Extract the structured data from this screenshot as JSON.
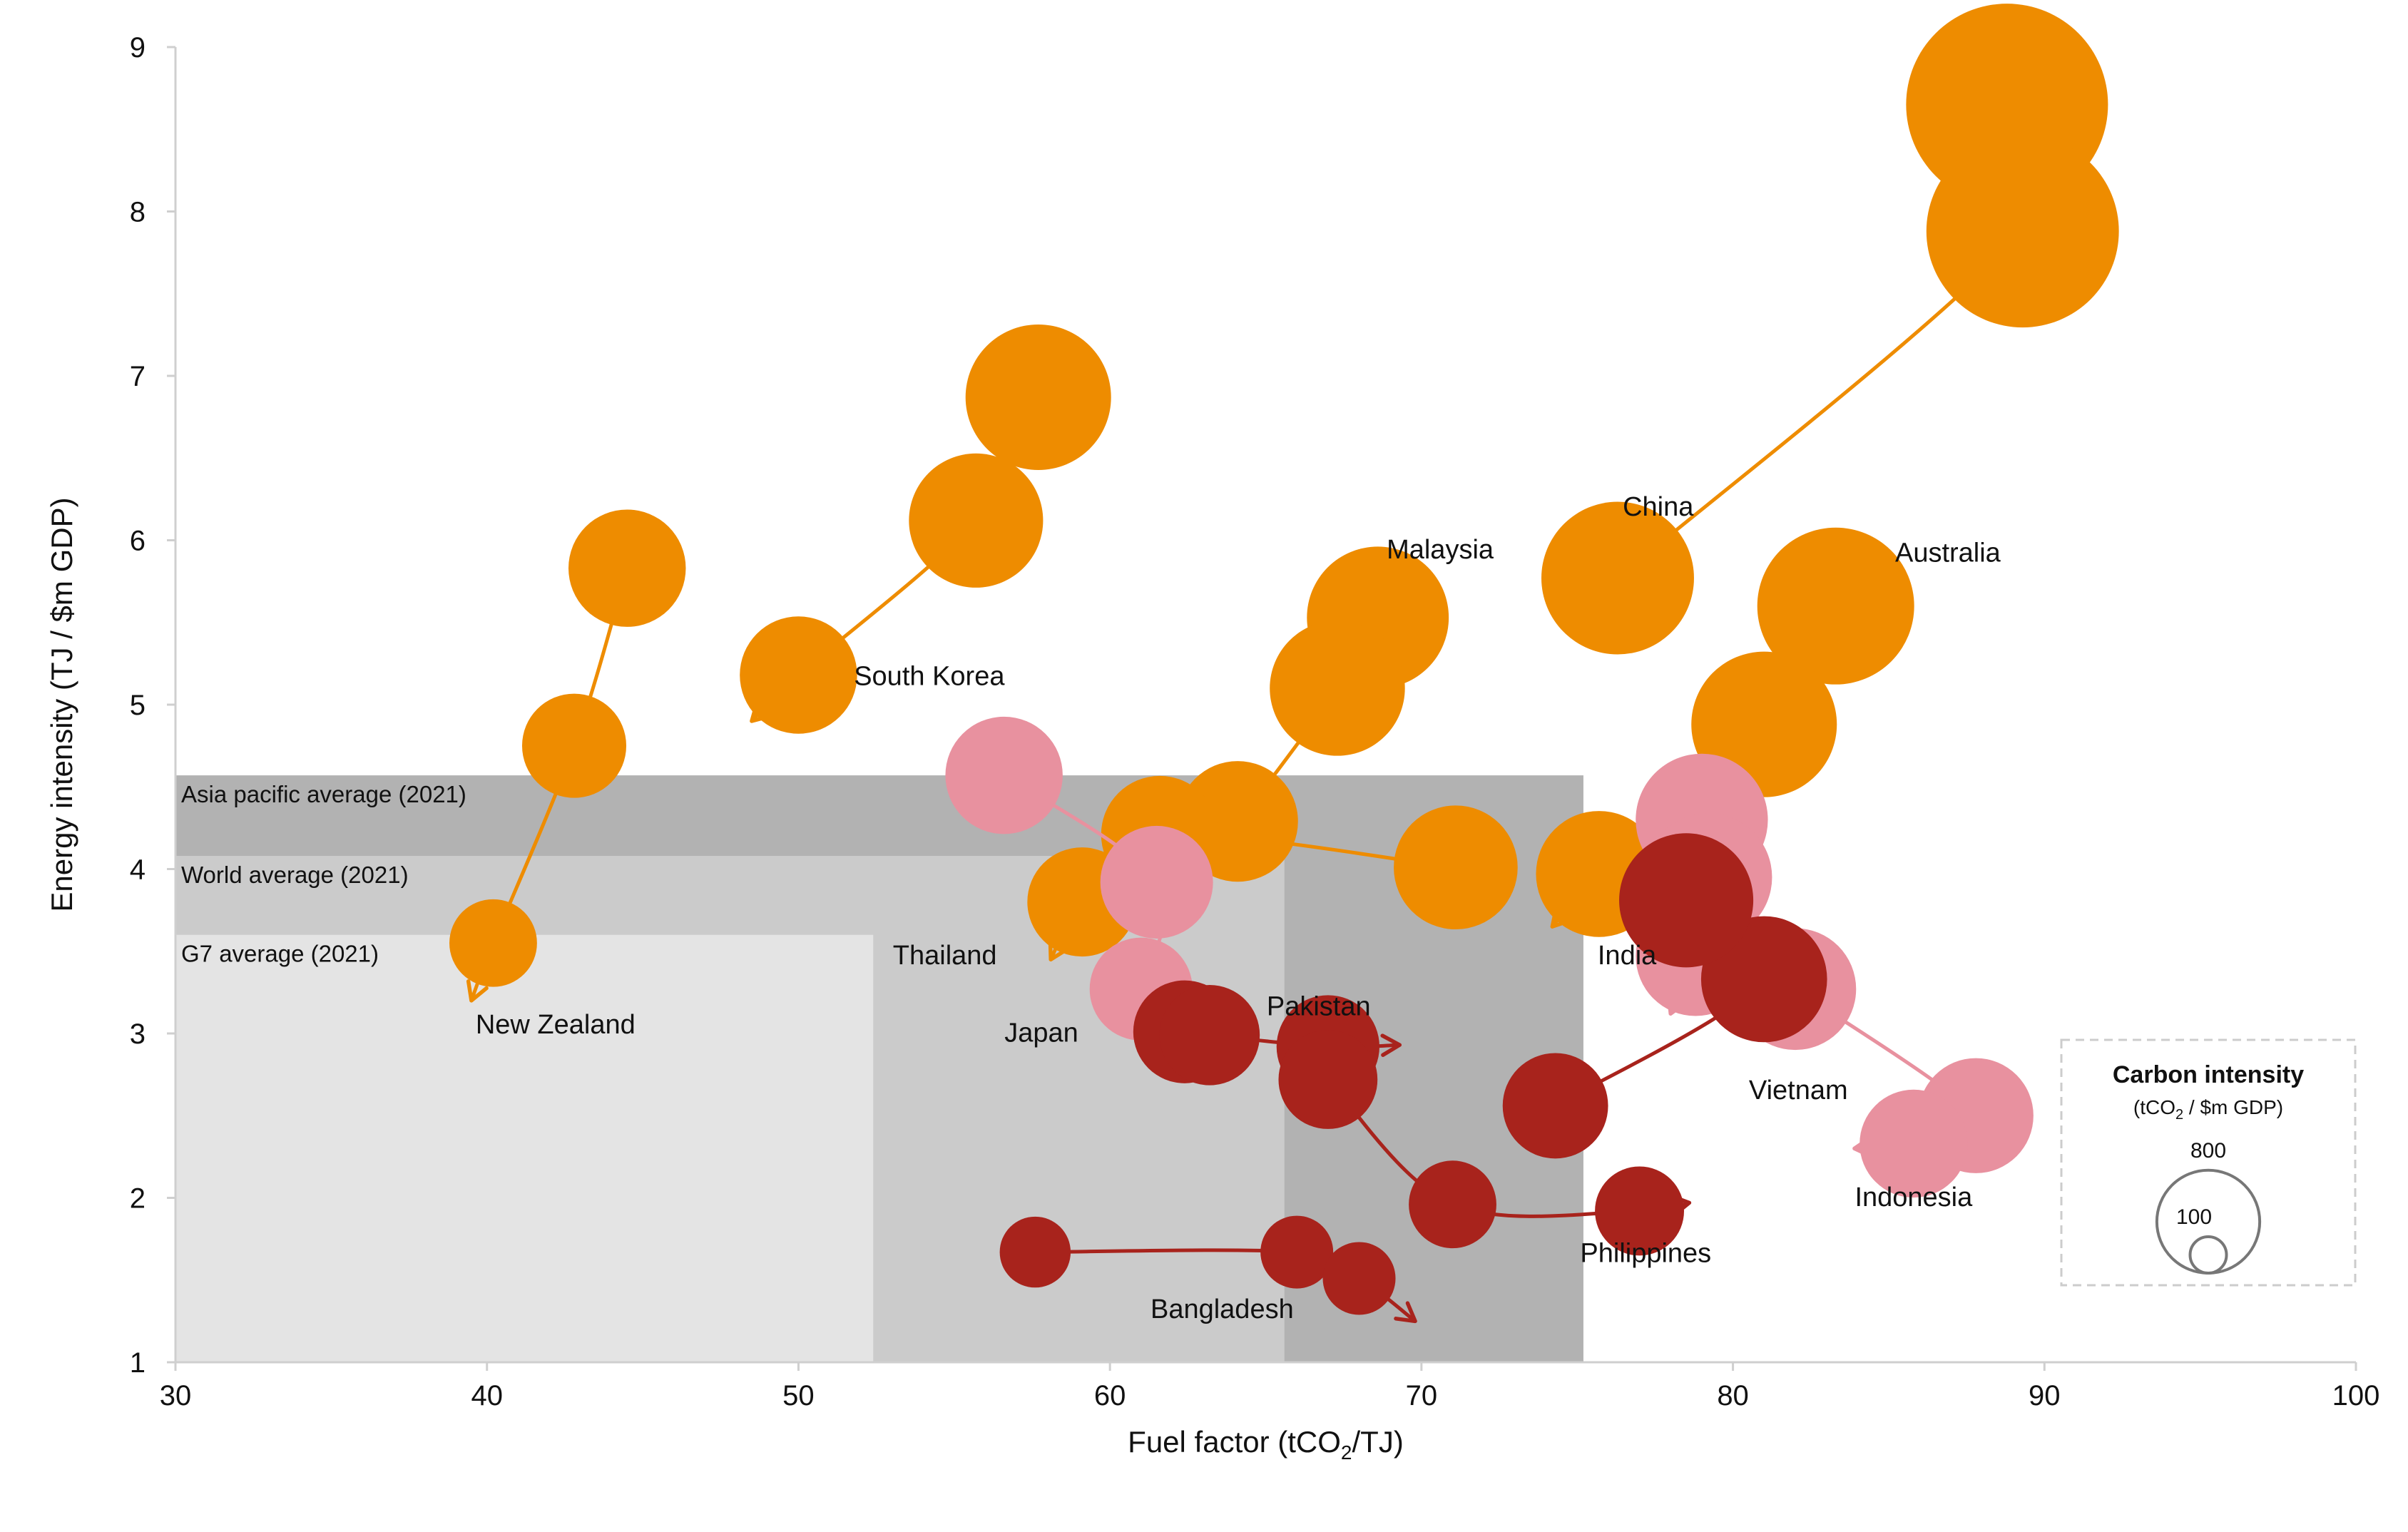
{
  "chart_data": {
    "type": "scatter",
    "xlabel": "Fuel factor (tCO2/TJ)",
    "xlabel_parts": {
      "main": "Fuel factor (tCO",
      "sub": "2",
      "tail": "/TJ)"
    },
    "ylabel": "Energy intensity (TJ / $m GDP)",
    "xlim": [
      30,
      100
    ],
    "ylim": [
      1,
      9
    ],
    "x_ticks": [
      "30",
      "40",
      "50",
      "60",
      "70",
      "80",
      "90",
      "100"
    ],
    "y_ticks": [
      "1",
      "2",
      "3",
      "4",
      "5",
      "6",
      "7",
      "8",
      "9"
    ],
    "grid": false,
    "colors": {
      "developed": "#ee8c00",
      "light_pink": "#e8919f",
      "dark_red": "#a8231c",
      "band_apac": "#b2b2b2",
      "band_world": "#cbcbcb",
      "band_g7": "#e4e4e4"
    },
    "bands": [
      {
        "label": "Asia pacific average (2021)",
        "x_max": 75.2,
        "y_max": 4.57
      },
      {
        "label": "World average (2021)",
        "x_max": 65.6,
        "y_max": 4.08
      },
      {
        "label": "G7 average (2021)",
        "x_max": 52.4,
        "y_max": 3.6
      }
    ],
    "series": [
      {
        "name": "China",
        "color": "developed",
        "label_at": [
          77.6,
          6.15
        ],
        "points": [
          {
            "x": 88.8,
            "y": 8.65,
            "ci": 770
          },
          {
            "x": 89.3,
            "y": 7.88,
            "ci": 700
          },
          {
            "x": 76.3,
            "y": 5.77,
            "ci": 440
          }
        ],
        "arrow_to": [
          74.5,
          5.5
        ]
      },
      {
        "name": "Australia",
        "color": "developed",
        "label_at": [
          86.9,
          5.87
        ],
        "points": [
          {
            "x": 83.3,
            "y": 5.6,
            "ci": 465
          },
          {
            "x": 81.0,
            "y": 4.88,
            "ci": 400
          },
          {
            "x": 75.7,
            "y": 3.97,
            "ci": 300
          }
        ],
        "arrow_to": [
          74.2,
          3.65
        ]
      },
      {
        "name": "South Korea",
        "color": "developed",
        "label_at": [
          54.2,
          5.12
        ],
        "points": [
          {
            "x": 57.7,
            "y": 6.87,
            "ci": 400
          },
          {
            "x": 55.7,
            "y": 6.12,
            "ci": 340
          },
          {
            "x": 50.0,
            "y": 5.18,
            "ci": 260
          }
        ],
        "arrow_to": [
          48.5,
          4.9
        ]
      },
      {
        "name": "Malaysia",
        "color": "developed",
        "label_at": [
          70.6,
          5.89
        ],
        "points": [
          {
            "x": 68.6,
            "y": 5.53,
            "ci": 380
          },
          {
            "x": 67.3,
            "y": 5.1,
            "ci": 345
          },
          {
            "x": 64.1,
            "y": 4.29,
            "ci": 275
          }
        ],
        "arrow_to": [
          62.6,
          4.05
        ]
      },
      {
        "name": "New Zealand",
        "color": "developed",
        "label_at": [
          42.2,
          3.0
        ],
        "points": [
          {
            "x": 44.5,
            "y": 5.83,
            "ci": 260
          },
          {
            "x": 42.8,
            "y": 4.75,
            "ci": 205
          },
          {
            "x": 40.2,
            "y": 3.55,
            "ci": 145
          }
        ],
        "arrow_to": [
          39.5,
          3.2
        ]
      },
      {
        "name": "Thailand",
        "color": "developed",
        "label_at": [
          54.7,
          3.42
        ],
        "points": [
          {
            "x": 71.1,
            "y": 4.01,
            "ci": 290
          },
          {
            "x": 61.6,
            "y": 4.21,
            "ci": 260
          },
          {
            "x": 59.1,
            "y": 3.8,
            "ci": 225
          }
        ],
        "arrow_to": [
          58.1,
          3.45
        ]
      },
      {
        "name": "Japan",
        "color": "light_pink",
        "label_at": [
          57.8,
          2.95
        ],
        "points": [
          {
            "x": 56.6,
            "y": 4.57,
            "ci": 260
          },
          {
            "x": 61.5,
            "y": 3.92,
            "ci": 240
          },
          {
            "x": 61.0,
            "y": 3.27,
            "ci": 200
          }
        ],
        "arrow_to": [
          60.4,
          3.0
        ]
      },
      {
        "name": "India",
        "color": "light_pink",
        "label_at": [
          76.6,
          3.42
        ],
        "points": [
          {
            "x": 79.0,
            "y": 4.3,
            "ci": 330
          },
          {
            "x": 79.2,
            "y": 3.95,
            "ci": 310
          },
          {
            "x": 78.8,
            "y": 3.47,
            "ci": 270
          }
        ],
        "arrow_to": [
          78.0,
          3.12
        ]
      },
      {
        "name": "Indonesia",
        "color": "light_pink",
        "label_at": [
          85.8,
          1.95
        ],
        "points": [
          {
            "x": 82.0,
            "y": 3.27,
            "ci": 280
          },
          {
            "x": 87.8,
            "y": 2.5,
            "ci": 250
          },
          {
            "x": 85.8,
            "y": 2.33,
            "ci": 220
          }
        ],
        "arrow_to": [
          83.9,
          2.3
        ]
      },
      {
        "name": "Vietnam",
        "color": "dark_red",
        "label_at": [
          82.1,
          2.6
        ],
        "points": [
          {
            "x": 74.3,
            "y": 2.56,
            "ci": 210
          },
          {
            "x": 81.0,
            "y": 3.33,
            "ci": 300
          },
          {
            "x": 78.5,
            "y": 3.81,
            "ci": 340
          }
        ],
        "arrow_to": [
          76.9,
          4.0
        ]
      },
      {
        "name": "Pakistan",
        "color": "dark_red",
        "label_at": [
          66.7,
          3.11
        ],
        "points": [
          {
            "x": 62.4,
            "y": 3.01,
            "ci": 200
          },
          {
            "x": 63.2,
            "y": 2.99,
            "ci": 190
          },
          {
            "x": 67.0,
            "y": 2.92,
            "ci": 200
          }
        ],
        "arrow_to": [
          69.3,
          2.93
        ]
      },
      {
        "name": "Philippines",
        "color": "dark_red",
        "label_at": [
          77.2,
          1.61
        ],
        "points": [
          {
            "x": 67.0,
            "y": 2.72,
            "ci": 185
          },
          {
            "x": 71.0,
            "y": 1.96,
            "ci": 145
          },
          {
            "x": 77.0,
            "y": 1.92,
            "ci": 150
          }
        ],
        "arrow_to": [
          78.6,
          1.97
        ]
      },
      {
        "name": "Bangladesh",
        "color": "dark_red",
        "label_at": [
          63.6,
          1.27
        ],
        "points": [
          {
            "x": 57.6,
            "y": 1.67,
            "ci": 95
          },
          {
            "x": 66.0,
            "y": 1.67,
            "ci": 100
          },
          {
            "x": 68.0,
            "y": 1.51,
            "ci": 100
          }
        ],
        "arrow_to": [
          69.8,
          1.25
        ]
      }
    ],
    "legend": {
      "title": "Carbon intensity",
      "subtitle_parts": {
        "main": "(tCO",
        "sub": "2",
        "tail": " / $m GDP)"
      },
      "sizes": [
        {
          "label": "800",
          "ci": 800
        },
        {
          "label": "100",
          "ci": 100
        }
      ],
      "placement": "bottom-right"
    }
  }
}
